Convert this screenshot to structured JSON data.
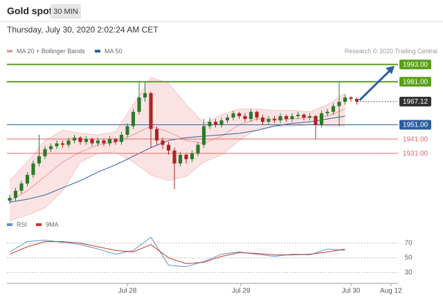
{
  "header": {
    "title": "Gold spot",
    "timeframe": "30 MIN",
    "date": "Thursday, July 30, 2020 2:02:24 AM CET",
    "credit": "Research © 2020 Trading Central"
  },
  "chart_data": [
    {
      "type": "candlestick",
      "xlim": [
        0,
        66
      ],
      "ylim": [
        1890,
        1997
      ],
      "up_color": "#2a7a2a",
      "down_color": "#b22222",
      "open": [
        1898,
        1900,
        1905,
        1910,
        1916,
        1924,
        1929,
        1934,
        1936,
        1938,
        1937,
        1940,
        1942,
        1939,
        1941,
        1938,
        1940,
        1938,
        1941,
        1939,
        1944,
        1950,
        1960,
        1970,
        1973,
        1948,
        1940,
        1937,
        1933,
        1924,
        1930,
        1927,
        1931,
        1937,
        1950,
        1953,
        1951,
        1954,
        1956,
        1959,
        1957,
        1955,
        1960,
        1956,
        1953,
        1955,
        1954,
        1957,
        1955,
        1957,
        1958,
        1956,
        1957,
        1951,
        1959,
        1960,
        1964,
        1967,
        1970,
        1969
      ],
      "high": [
        1902,
        1907,
        1912,
        1918,
        1926,
        1944,
        1936,
        1938,
        1940,
        1940,
        1942,
        1944,
        1943,
        1943,
        1942,
        1942,
        1941,
        1943,
        1942,
        1946,
        1952,
        1962,
        1981,
        1981,
        1974,
        1950,
        1942,
        1939,
        1935,
        1932,
        1931,
        1933,
        1939,
        1955,
        1956,
        1955,
        1956,
        1958,
        1961,
        1960,
        1959,
        1962,
        1961,
        1958,
        1957,
        1957,
        1959,
        1958,
        1959,
        1960,
        1959,
        1959,
        1958,
        1961,
        1962,
        1966,
        1981,
        1972,
        1971,
        1970
      ],
      "low": [
        1896,
        1898,
        1903,
        1908,
        1914,
        1922,
        1927,
        1932,
        1934,
        1935,
        1935,
        1938,
        1937,
        1937,
        1936,
        1936,
        1936,
        1936,
        1937,
        1937,
        1942,
        1948,
        1958,
        1967,
        1935,
        1937,
        1934,
        1930,
        1906,
        1922,
        1924,
        1925,
        1929,
        1935,
        1948,
        1949,
        1949,
        1952,
        1954,
        1955,
        1953,
        1953,
        1954,
        1951,
        1951,
        1952,
        1952,
        1953,
        1953,
        1955,
        1954,
        1954,
        1941,
        1949,
        1957,
        1958,
        1950,
        1965,
        1967,
        1965
      ],
      "close": [
        1900,
        1905,
        1910,
        1916,
        1924,
        1929,
        1934,
        1936,
        1938,
        1937,
        1940,
        1942,
        1939,
        1941,
        1938,
        1940,
        1938,
        1941,
        1939,
        1944,
        1950,
        1960,
        1970,
        1973,
        1948,
        1940,
        1937,
        1933,
        1924,
        1930,
        1927,
        1931,
        1937,
        1950,
        1953,
        1951,
        1954,
        1956,
        1959,
        1957,
        1955,
        1960,
        1956,
        1953,
        1955,
        1954,
        1957,
        1955,
        1957,
        1958,
        1956,
        1957,
        1951,
        1959,
        1960,
        1964,
        1967,
        1970,
        1969,
        1967.12
      ],
      "overlay_x": [
        0,
        3,
        6,
        9,
        12,
        15,
        18,
        21,
        24,
        27,
        30,
        33,
        36,
        39,
        42,
        45,
        48,
        51,
        54,
        57
      ],
      "bands": {
        "name": "MA 20 + Bollinger Bands",
        "color": "#e89a9a",
        "fill": "#fbdcdc",
        "upper": [
          1912,
          1925,
          1940,
          1947,
          1945,
          1944,
          1946,
          1965,
          1984,
          1980,
          1965,
          1952,
          1958,
          1962,
          1962,
          1961,
          1961,
          1960,
          1965,
          1973
        ],
        "middle": [
          1898,
          1905,
          1915,
          1925,
          1932,
          1937,
          1939,
          1944,
          1950,
          1946,
          1940,
          1938,
          1943,
          1951,
          1955,
          1955,
          1955,
          1956,
          1957,
          1962
        ],
        "lower": [
          1884,
          1888,
          1893,
          1905,
          1925,
          1931,
          1932,
          1925,
          1916,
          1912,
          1915,
          1925,
          1930,
          1940,
          1948,
          1950,
          1950,
          1951,
          1950,
          1950
        ]
      },
      "series": [
        {
          "name": "MA 50",
          "color": "#2c5f9e",
          "values": [
            1897,
            1899,
            1902,
            1907,
            1912,
            1918,
            1923,
            1929,
            1935,
            1940,
            1942,
            1943,
            1944,
            1945,
            1947,
            1950,
            1952,
            1953,
            1955,
            1957
          ]
        }
      ],
      "levels": [
        {
          "value": 1993,
          "label": "1993.00",
          "color": "#5a9e1a",
          "style": "box"
        },
        {
          "value": 1981,
          "label": "1981.00",
          "color": "#5a9e1a",
          "style": "box"
        },
        {
          "value": 1967.12,
          "color": "#333333",
          "style": "current"
        },
        {
          "value": 1951,
          "label": "1951.00",
          "color": "#2c5f9e",
          "style": "box"
        },
        {
          "value": 1941,
          "label": "1941.00",
          "color": "#e06666",
          "style": "text"
        },
        {
          "value": 1931,
          "label": "1931.00",
          "color": "#e06666",
          "style": "text"
        }
      ],
      "target": 1993
    },
    {
      "type": "line",
      "xlim": [
        0,
        66
      ],
      "ylim": [
        20,
        80
      ],
      "yticks": [
        30,
        50,
        70
      ],
      "grid": true,
      "x": [
        0,
        3,
        6,
        9,
        12,
        15,
        18,
        21,
        24,
        27,
        30,
        33,
        36,
        39,
        42,
        45,
        48,
        51,
        54,
        57
      ],
      "xticks": [
        {
          "value": 20,
          "label": "Jul 28"
        },
        {
          "value": 39.3,
          "label": "Jul 29"
        },
        {
          "value": 58,
          "label": "Jul 30"
        },
        {
          "value": 64.8,
          "label": "Aug 12"
        }
      ],
      "series": [
        {
          "name": "RSI",
          "color": "#5b8fd0",
          "values": [
            58,
            72,
            74,
            71,
            68,
            62,
            55,
            60,
            78,
            40,
            38,
            45,
            55,
            58,
            55,
            52,
            55,
            54,
            62,
            60
          ]
        },
        {
          "name": "9MA",
          "color": "#c0392b",
          "values": [
            55,
            65,
            72,
            72,
            70,
            65,
            60,
            58,
            68,
            50,
            42,
            44,
            52,
            57,
            56,
            54,
            54,
            55,
            58,
            62
          ]
        }
      ]
    }
  ]
}
